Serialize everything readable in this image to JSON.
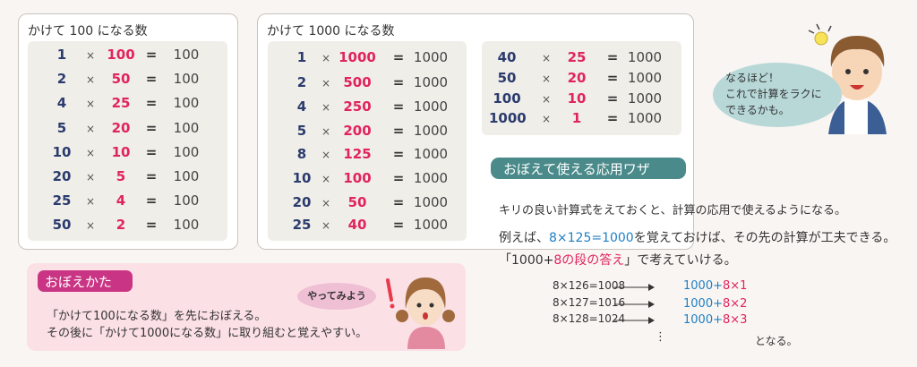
{
  "card100": {
    "title": "かけて 100 になる数",
    "rows": [
      {
        "a": "1",
        "b": "100",
        "r": "100"
      },
      {
        "a": "2",
        "b": "50",
        "r": "100"
      },
      {
        "a": "4",
        "b": "25",
        "r": "100"
      },
      {
        "a": "5",
        "b": "20",
        "r": "100"
      },
      {
        "a": "10",
        "b": "10",
        "r": "100"
      },
      {
        "a": "20",
        "b": "5",
        "r": "100"
      },
      {
        "a": "25",
        "b": "4",
        "r": "100"
      },
      {
        "a": "50",
        "b": "2",
        "r": "100"
      }
    ]
  },
  "card1000": {
    "title": "かけて 1000 になる数",
    "rows": [
      {
        "a": "1",
        "b": "1000",
        "r": "1000"
      },
      {
        "a": "2",
        "b": "500",
        "r": "1000"
      },
      {
        "a": "4",
        "b": "250",
        "r": "1000"
      },
      {
        "a": "5",
        "b": "200",
        "r": "1000"
      },
      {
        "a": "8",
        "b": "125",
        "r": "1000"
      },
      {
        "a": "10",
        "b": "100",
        "r": "1000"
      },
      {
        "a": "20",
        "b": "50",
        "r": "1000"
      },
      {
        "a": "25",
        "b": "40",
        "r": "1000"
      }
    ],
    "rows2": [
      {
        "a": "40",
        "b": "25",
        "r": "1000"
      },
      {
        "a": "50",
        "b": "20",
        "r": "1000"
      },
      {
        "a": "100",
        "b": "10",
        "r": "1000"
      },
      {
        "a": "1000",
        "b": "1",
        "r": "1000"
      }
    ]
  },
  "symbols": {
    "times": "×",
    "equals": "="
  },
  "boy_bubble": {
    "line1": "なるほど！",
    "line2": "これで計算をラクに",
    "line3": "できるかも。"
  },
  "applied": {
    "label": "おぼえて使える応用ワザ",
    "line1": "キリの良い計算式をえておくと、計算の応用で使えるようになる。",
    "line2_pre": "例えば、",
    "line2_blue": "8×125=1000",
    "line2_post": "を覚えておけば、その先の計算が工夫できる。",
    "line3_pre": "「1000+",
    "line3_pink": "8の段の答え",
    "line3_post": "」で考えていける。",
    "formulas": [
      {
        "left": "8×126=1008",
        "base": "1000+",
        "add": "8×1"
      },
      {
        "left": "8×127=1016",
        "base": "1000+",
        "add": "8×2"
      },
      {
        "left": "8×128=1024",
        "base": "1000+",
        "add": "8×3"
      }
    ],
    "dots": "⋮",
    "ending": "となる。"
  },
  "memo": {
    "label": "おぼえかた",
    "bubble": "やってみよう",
    "line1": "「かけて100になる数」を先におぼえる。",
    "line2": "その後に「かけて1000になる数」に取り組むと覚えやすい。"
  },
  "colors": {
    "navy": "#2b3b6e",
    "pink": "#e0245e",
    "blue": "#1f7fc4",
    "teal": "#4a8a8a",
    "magenta": "#c93584"
  }
}
